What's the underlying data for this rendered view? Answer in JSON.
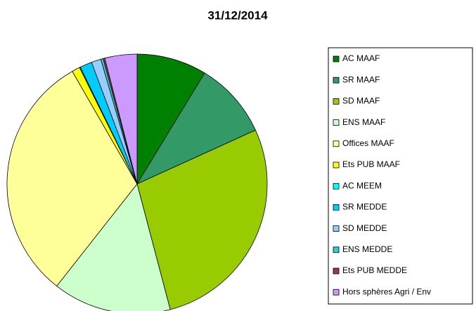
{
  "chart_data": {
    "type": "pie",
    "title": "31/12/2014",
    "categories": [
      "AC MAAF",
      "SR MAAF",
      "SD MAAF",
      "ENS MAAF",
      "Offices MAAF",
      "Ets PUB MAAF",
      "AC MEEM",
      "SR MEDDE",
      "SD MEDDE",
      "ENS MEDDE",
      "Ets PUB MEDDE",
      "Hors sphères Agri / Env"
    ],
    "values": [
      8.7,
      9.5,
      27.7,
      14.7,
      31.1,
      1.0,
      0.1,
      1.5,
      1.2,
      0.3,
      0.2,
      4.0
    ],
    "colors": [
      "#008000",
      "#339966",
      "#99cc00",
      "#ccffcc",
      "#ffff99",
      "#ffff00",
      "#00ffff",
      "#00ccff",
      "#99ccff",
      "#33cccc",
      "#993366",
      "#cc99ff"
    ],
    "legend": "right"
  }
}
